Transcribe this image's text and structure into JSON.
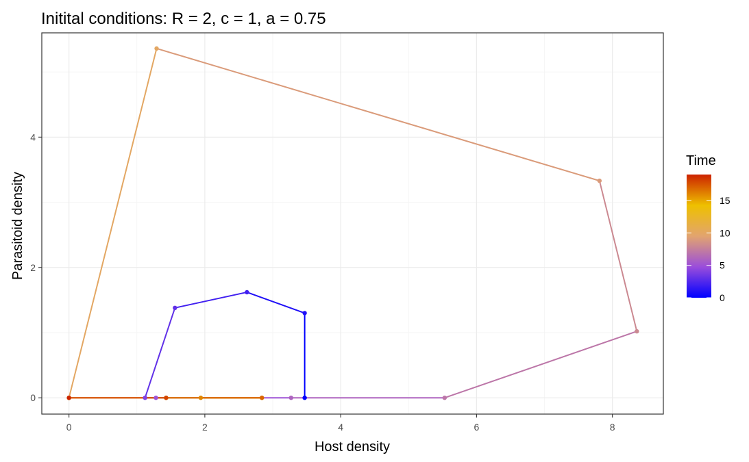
{
  "chart_data": {
    "type": "line",
    "title": "Initital conditions: R = 2, c = 1, a = 0.75",
    "xlabel": "Host density",
    "ylabel": "Parasitoid density",
    "xlim": [
      -0.4,
      8.75
    ],
    "ylim": [
      -0.25,
      5.6
    ],
    "x_ticks": [
      0,
      2,
      4,
      6,
      8
    ],
    "x_minor_ticks": [
      1,
      3,
      5,
      7
    ],
    "y_ticks": [
      0,
      2,
      4
    ],
    "y_minor_ticks": [
      1,
      3,
      5
    ],
    "x_tick_labels": [
      "0",
      "2",
      "4",
      "6",
      "8"
    ],
    "y_tick_labels": [
      "0",
      "2",
      "4"
    ],
    "grid": true,
    "legend": {
      "title": "Time",
      "position": "right",
      "colorbar_range": [
        0,
        19
      ],
      "breaks": [
        0,
        5,
        10,
        15
      ],
      "break_labels": [
        "0",
        "5",
        "10",
        "15"
      ],
      "colors": [
        "#0000ff",
        "#9a4ddb",
        "#e2a46f",
        "#eec000",
        "#cc2200"
      ]
    },
    "series": [
      {
        "x": [
          3.47,
          3.47,
          2.62,
          1.56,
          1.12,
          1.28,
          3.27,
          5.53,
          8.36,
          7.81,
          1.29,
          0.0,
          0.0,
          0.0,
          1.43,
          2.84,
          1.94,
          2.84,
          1.43,
          0.0
        ],
        "y": [
          0.0,
          1.3,
          1.62,
          1.38,
          0.0,
          0.0,
          0.0,
          0.0,
          1.02,
          3.33,
          5.36,
          0.0,
          0.0,
          0.0,
          0.0,
          0.0,
          0.0,
          0.0,
          0.0,
          0.0
        ],
        "time": [
          0,
          1,
          2,
          3,
          4,
          5,
          6,
          7,
          8,
          9,
          10,
          11,
          12,
          13,
          14,
          15,
          16,
          17,
          18,
          19
        ]
      }
    ]
  }
}
